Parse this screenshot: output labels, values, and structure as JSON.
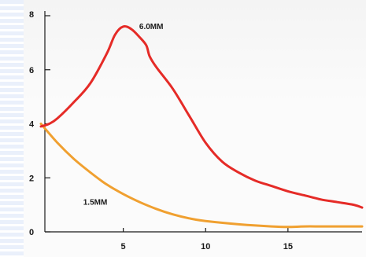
{
  "chart_data": {
    "type": "line",
    "title": "",
    "xlabel": "",
    "ylabel": "",
    "xlim": [
      0,
      19.5
    ],
    "ylim": [
      0,
      8
    ],
    "x_ticks": [
      5,
      10,
      15
    ],
    "y_ticks": [
      0,
      2,
      4,
      6,
      8
    ],
    "grid": false,
    "series": [
      {
        "name": "6.0MM",
        "color": "#e52b27",
        "x": [
          0,
          0.5,
          1,
          2,
          3,
          4,
          4.5,
          5,
          5.5,
          6,
          6.4,
          6.6,
          7,
          8,
          9,
          10,
          11,
          12,
          13,
          14,
          15,
          16,
          17,
          18,
          19,
          19.5
        ],
        "y": [
          3.9,
          4.0,
          4.2,
          4.8,
          5.5,
          6.6,
          7.3,
          7.6,
          7.5,
          7.2,
          6.9,
          6.5,
          6.1,
          5.3,
          4.3,
          3.3,
          2.6,
          2.2,
          1.9,
          1.7,
          1.5,
          1.35,
          1.2,
          1.1,
          1.0,
          0.9
        ]
      },
      {
        "name": "1.5MM",
        "color": "#f0a030",
        "x": [
          0,
          1,
          2,
          3,
          4,
          5,
          6,
          7,
          8,
          9,
          10,
          12,
          14,
          15,
          16,
          17,
          18,
          19.5
        ],
        "y": [
          4.0,
          3.3,
          2.7,
          2.2,
          1.75,
          1.4,
          1.1,
          0.85,
          0.65,
          0.5,
          0.4,
          0.28,
          0.2,
          0.18,
          0.2,
          0.2,
          0.2,
          0.2
        ]
      }
    ],
    "annotations": [
      {
        "text": "6.0MM",
        "x": 6.7,
        "y": 7.5
      },
      {
        "text": "1.5MM",
        "x": 3.3,
        "y": 1.0
      }
    ]
  }
}
